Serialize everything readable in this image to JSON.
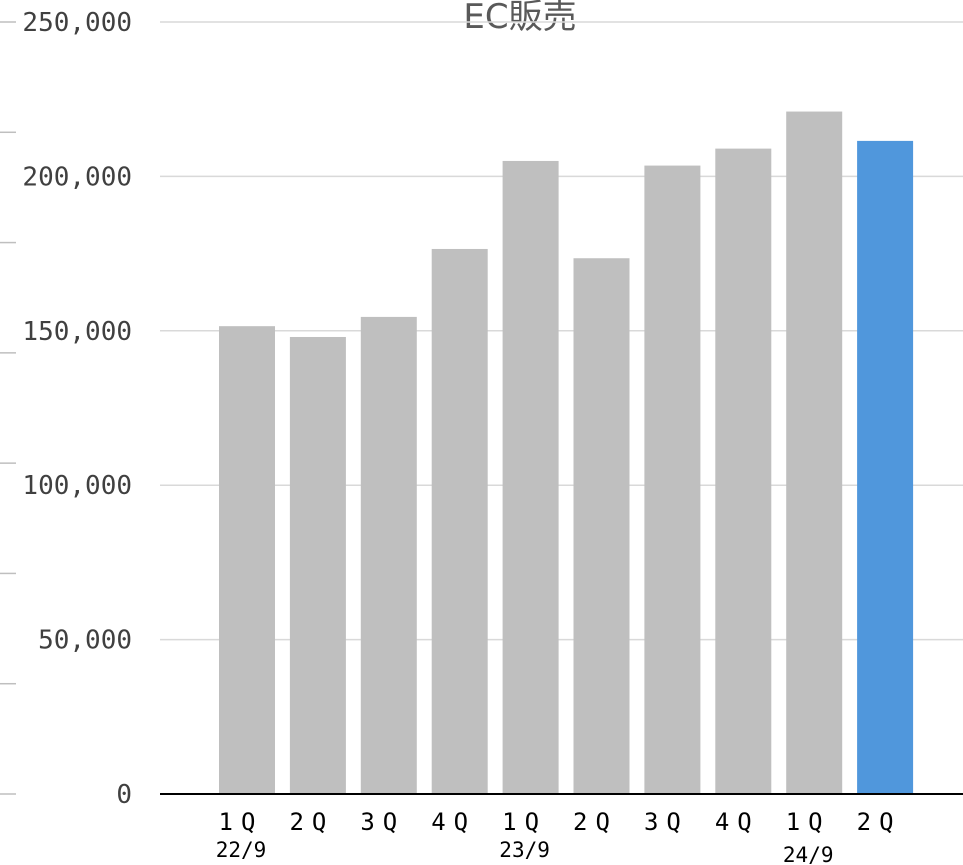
{
  "chart_data": {
    "type": "bar",
    "title": "EC販売",
    "xlabel": "",
    "ylabel": "",
    "ylim": [
      0,
      250000
    ],
    "yticks": [
      0,
      50000,
      100000,
      150000,
      200000,
      250000
    ],
    "ytick_labels": [
      "0",
      "50,000",
      "100,000",
      "150,000",
      "200,000",
      "250,000"
    ],
    "grid": true,
    "legend": "none",
    "categories": [
      "1Q",
      "2Q",
      "3Q",
      "4Q",
      "1Q",
      "2Q",
      "3Q",
      "4Q",
      "1Q",
      "2Q"
    ],
    "period_labels": [
      "22/9",
      "",
      "",
      "",
      "23/9",
      "",
      "",
      "",
      "24/9",
      ""
    ],
    "values": [
      151500,
      148000,
      154500,
      176500,
      205000,
      173500,
      203500,
      209000,
      221000,
      211500
    ],
    "colors": [
      "#bfbfbf",
      "#bfbfbf",
      "#bfbfbf",
      "#bfbfbf",
      "#bfbfbf",
      "#bfbfbf",
      "#bfbfbf",
      "#bfbfbf",
      "#bfbfbf",
      "#5097dc"
    ]
  },
  "colors": {
    "bar_default": "#bfbfbf",
    "bar_highlight": "#5097dc",
    "gridline": "#d9d9d9",
    "axis": "#000000"
  }
}
